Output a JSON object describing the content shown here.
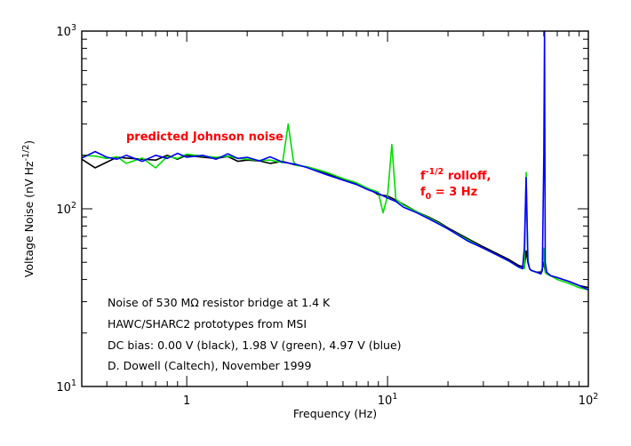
{
  "chart_data": {
    "type": "line",
    "title": "",
    "xlabel": "Frequency (Hz)",
    "ylabel": "Voltage Noise (nV Hz",
    "ylabel_sup": "-1/2",
    "ylabel_end": ")",
    "xscale": "log",
    "yscale": "log",
    "xlim": [
      0.3,
      100
    ],
    "ylim": [
      10,
      1000
    ],
    "x_ticks": [
      {
        "value": 1,
        "base": "1",
        "exp": ""
      },
      {
        "value": 10,
        "base": "10",
        "exp": "1"
      },
      {
        "value": 100,
        "base": "10",
        "exp": "2"
      }
    ],
    "y_ticks": [
      {
        "value": 10,
        "base": "10",
        "exp": "1"
      },
      {
        "value": 100,
        "base": "10",
        "exp": "2"
      },
      {
        "value": 1000,
        "base": "10",
        "exp": "3"
      }
    ],
    "grid": false,
    "annotations": {
      "johnson": "predicted Johnson noise",
      "rolloff_f": "f",
      "rolloff_exp": "-1/2",
      "rolloff_rest": " rolloff,",
      "f0_f": "f",
      "f0_sub": "0",
      "f0_rest": " = 3 Hz"
    },
    "notes": [
      "Noise of 530 MΩ resistor bridge at 1.4 K",
      "HAWC/SHARC2 prototypes from MSI",
      "DC bias:  0.00 V (black), 1.98 V (green), 4.97 V (blue)",
      "D. Dowell (Caltech), November 1999"
    ],
    "series": [
      {
        "color": "#000000",
        "x": [
          0.3,
          0.35,
          0.4,
          0.45,
          0.5,
          0.6,
          0.7,
          0.8,
          0.9,
          1.0,
          1.2,
          1.4,
          1.6,
          1.8,
          2.0,
          2.3,
          2.6,
          3.0,
          3.5,
          4.0,
          4.5,
          5.0,
          6.0,
          7.0,
          8.0,
          9.0,
          10.0,
          11.0,
          12.0,
          14.0,
          16.0,
          18.0,
          20.0,
          25.0,
          30.0,
          35.0,
          40.0,
          45.0,
          48.0,
          49.0,
          50.0,
          51.0,
          52.0,
          55.0,
          58.0,
          59.0,
          60.0,
          61.0,
          62.0,
          65.0,
          70.0,
          80.0,
          90.0,
          100.0
        ],
        "y": [
          190,
          170,
          183,
          195,
          193,
          190,
          188,
          200,
          190,
          200,
          195,
          192,
          197,
          185,
          188,
          186,
          180,
          185,
          176,
          172,
          165,
          158,
          146,
          138,
          130,
          120,
          118,
          112,
          106,
          96,
          90,
          84,
          78,
          68,
          61,
          56,
          52,
          48,
          47,
          58,
          50,
          46,
          45,
          44,
          44,
          46,
          50,
          44,
          43,
          42,
          41,
          39,
          37,
          36
        ]
      },
      {
        "color": "#00dd00",
        "x": [
          0.3,
          0.35,
          0.4,
          0.45,
          0.5,
          0.6,
          0.7,
          0.8,
          0.9,
          1.0,
          1.2,
          1.4,
          1.6,
          1.8,
          2.0,
          2.3,
          2.6,
          3.0,
          3.2,
          3.4,
          3.5,
          4.0,
          4.5,
          5.0,
          6.0,
          7.0,
          8.0,
          9.0,
          9.5,
          10.0,
          10.5,
          11.0,
          12.0,
          14.0,
          16.0,
          18.0,
          20.0,
          25.0,
          30.0,
          35.0,
          40.0,
          45.0,
          48.0,
          49.0,
          50.0,
          51.0,
          52.0,
          55.0,
          58.0,
          59.0,
          60.0,
          61.0,
          62.0,
          65.0,
          70.0,
          80.0,
          90.0,
          100.0
        ],
        "y": [
          200,
          198,
          192,
          196,
          180,
          193,
          170,
          197,
          192,
          203,
          198,
          195,
          198,
          192,
          190,
          187,
          188,
          182,
          300,
          185,
          176,
          172,
          166,
          160,
          148,
          140,
          130,
          124,
          95,
          118,
          230,
          113,
          105,
          96,
          89,
          83,
          77,
          67,
          60,
          55,
          51,
          47,
          46,
          160,
          52,
          46,
          45,
          44,
          43,
          46,
          60,
          44,
          43,
          42,
          40,
          38,
          36,
          35
        ]
      },
      {
        "color": "#0000ff",
        "x": [
          0.3,
          0.35,
          0.4,
          0.45,
          0.5,
          0.6,
          0.7,
          0.8,
          0.9,
          1.0,
          1.2,
          1.4,
          1.6,
          1.8,
          2.0,
          2.3,
          2.6,
          3.0,
          3.5,
          4.0,
          4.5,
          5.0,
          6.0,
          7.0,
          8.0,
          9.0,
          10.0,
          11.0,
          12.0,
          14.0,
          16.0,
          18.0,
          20.0,
          25.0,
          30.0,
          35.0,
          40.0,
          45.0,
          47.0,
          48.0,
          49.0,
          50.0,
          51.0,
          52.0,
          55.0,
          58.0,
          59.0,
          60.0,
          60.5,
          61.0,
          62.0,
          65.0,
          70.0,
          80.0,
          90.0,
          100.0
        ],
        "y": [
          193,
          210,
          195,
          190,
          200,
          185,
          200,
          192,
          205,
          195,
          200,
          190,
          204,
          192,
          195,
          186,
          196,
          183,
          178,
          170,
          162,
          155,
          145,
          137,
          128,
          122,
          115,
          110,
          102,
          95,
          88,
          82,
          77,
          66,
          60,
          55,
          51,
          47,
          46,
          60,
          150,
          50,
          46,
          45,
          44,
          43,
          45,
          200,
          1000,
          50,
          44,
          42,
          41,
          39,
          37,
          35
        ]
      }
    ]
  }
}
